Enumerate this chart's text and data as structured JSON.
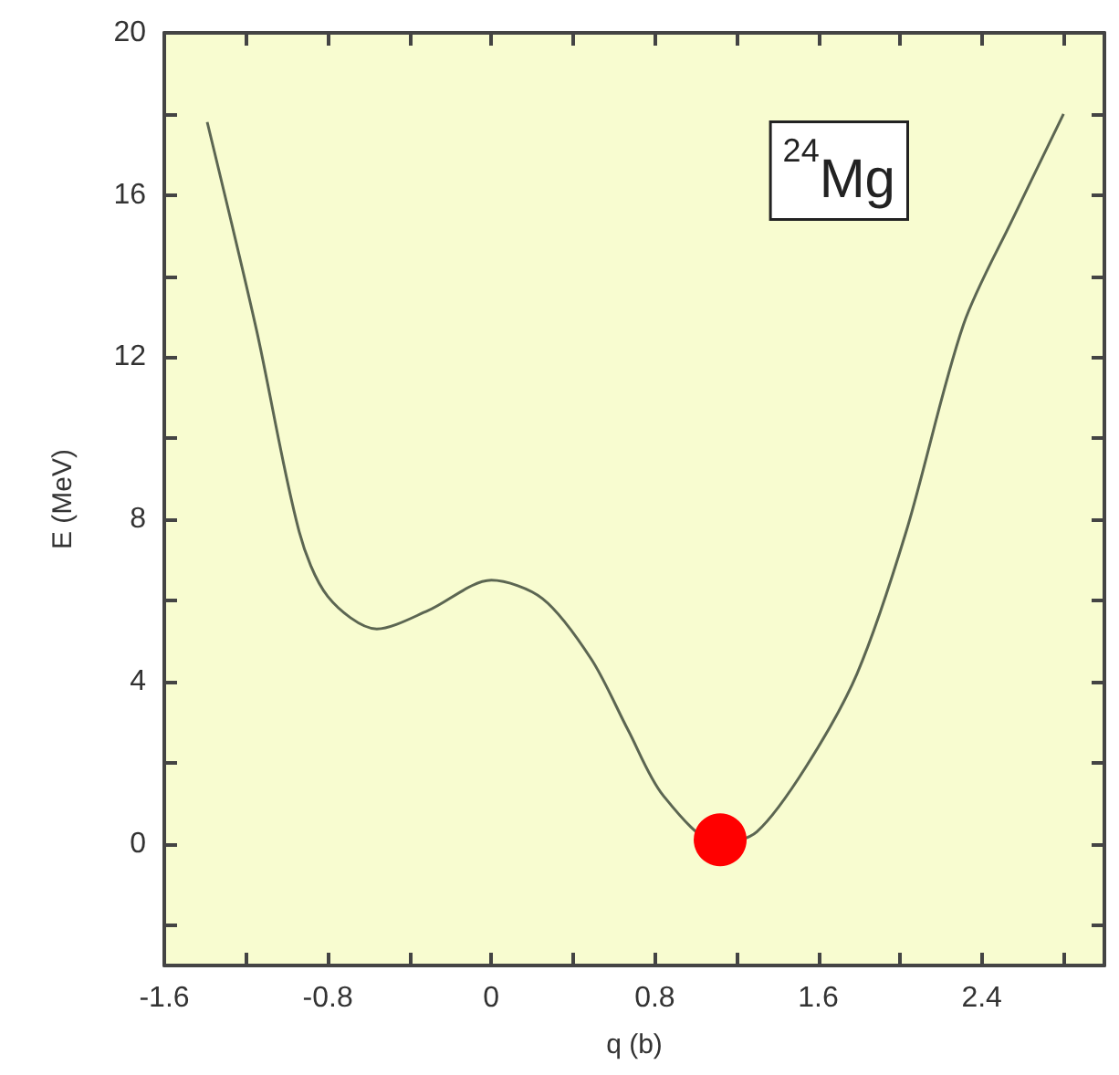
{
  "chart_data": {
    "type": "line",
    "xlabel": "q (b)",
    "ylabel": "E (MeV)",
    "annotations": [
      "$^{24}$Mg"
    ],
    "xlim": [
      -1.6,
      3.0
    ],
    "ylim": [
      -3,
      20
    ],
    "xticks": [
      -1.6,
      {
        "value": -1.2,
        "label": null
      },
      -0.8,
      {
        "value": -0.4,
        "label": null
      },
      0,
      {
        "value": 0.4,
        "label": null
      },
      0.8,
      {
        "value": 1.2,
        "label": null
      },
      1.6,
      {
        "value": 2.0,
        "label": null
      },
      2.4,
      {
        "value": 2.8,
        "label": null
      }
    ],
    "yticks": [
      {
        "value": -2,
        "label": null
      },
      0,
      {
        "value": 2,
        "label": null
      },
      4,
      {
        "value": 6,
        "label": null
      },
      8,
      {
        "value": 10,
        "label": null
      },
      12,
      {
        "value": 14,
        "label": null
      },
      16,
      {
        "value": 18,
        "label": null
      },
      20
    ],
    "grid": false,
    "series": [
      {
        "color": "#5c6652",
        "marker": "none",
        "line_style": "solid",
        "x": [
          -1.39,
          -1.15,
          -0.94,
          -0.8,
          -0.56,
          -0.31,
          0,
          0.25,
          0.49,
          0.67,
          0.84,
          1.12,
          1.3,
          1.54,
          1.79,
          2.03,
          2.31,
          2.56,
          2.8
        ],
        "values": [
          17.8,
          12.7,
          7.7,
          6.1,
          5.3,
          5.75,
          6.5,
          6.05,
          4.55,
          2.8,
          1.2,
          0.0,
          0.3,
          1.9,
          4.2,
          7.7,
          12.8,
          15.5,
          18.0
        ]
      },
      {
        "type": "scatter",
        "color": "#ff0000",
        "marker": "circle",
        "x": [
          1.12
        ],
        "values": [
          0.1
        ]
      }
    ]
  }
}
